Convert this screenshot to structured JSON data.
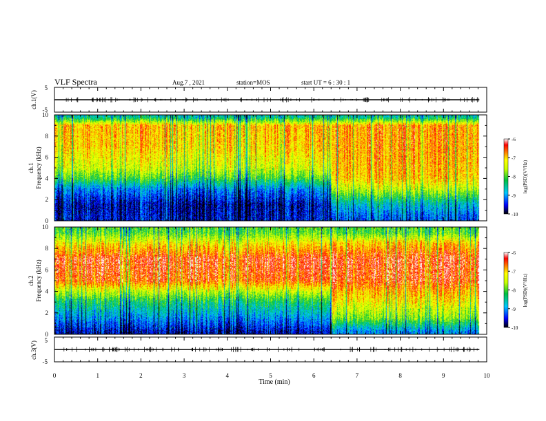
{
  "header": {
    "title": "VLF Spectra",
    "date": "Aug.7 , 2021",
    "station": "station=MOS",
    "start": "start UT = 6 : 30 : 1"
  },
  "x_axis": {
    "label": "Time (min)",
    "ticks": [
      "0",
      "1",
      "2",
      "3",
      "4",
      "5",
      "6",
      "7",
      "8",
      "9",
      "10"
    ]
  },
  "colorbar": {
    "ticks": [
      "-6",
      "-7",
      "-8",
      "-9",
      "-10"
    ],
    "label": "log(PSD)(V²/Hz)"
  },
  "chart_data": [
    {
      "type": "line",
      "title": "",
      "ylabel": "ch.1(V)",
      "ylim": [
        -5,
        5
      ],
      "yticks": [
        "5",
        "-5"
      ],
      "xlim": [
        0,
        10
      ],
      "series": [
        {
          "x": [
            0,
            9.83
          ],
          "y": [
            0,
            0
          ]
        }
      ]
    },
    {
      "type": "heatmap",
      "ylabel": "ch.1\nFrequency (kHz)",
      "ylim": [
        0,
        10
      ],
      "yticks": [
        "10",
        "8",
        "6",
        "4",
        "2",
        "0"
      ],
      "xlim": [
        0,
        10
      ],
      "x": [
        0,
        9.83
      ],
      "color_range_log10_psd": [
        -10,
        -6
      ],
      "profile_before_6_4_min": [
        {
          "f": 0.3,
          "psd": -9.5
        },
        {
          "f": 1.5,
          "psd": -9.6
        },
        {
          "f": 3,
          "psd": -9.0
        },
        {
          "f": 4,
          "psd": -8.0
        },
        {
          "f": 5,
          "psd": -7.4
        },
        {
          "f": 7,
          "psd": -7.0
        },
        {
          "f": 9,
          "psd": -6.9
        },
        {
          "f": 9.8,
          "psd": -8.5
        }
      ],
      "profile_after_6_4_min": [
        {
          "f": 0.3,
          "psd": -9.2
        },
        {
          "f": 1.5,
          "psd": -8.7
        },
        {
          "f": 3,
          "psd": -7.5
        },
        {
          "f": 4,
          "psd": -7.0
        },
        {
          "f": 5,
          "psd": -6.9
        },
        {
          "f": 7,
          "psd": -6.8
        },
        {
          "f": 9,
          "psd": -6.8
        },
        {
          "f": 9.8,
          "psd": -8.5
        }
      ]
    },
    {
      "type": "heatmap",
      "ylabel": "ch.2\nFrequency (kHz)",
      "ylim": [
        0,
        10
      ],
      "yticks": [
        "10",
        "8",
        "6",
        "4",
        "2",
        "0"
      ],
      "xlim": [
        0,
        10
      ],
      "x": [
        0,
        9.83
      ],
      "color_range_log10_psd": [
        -10,
        -6
      ],
      "profile_before_6_4_min": [
        {
          "f": 0.3,
          "psd": -9.6
        },
        {
          "f": 1.5,
          "psd": -9.0
        },
        {
          "f": 3,
          "psd": -8.3
        },
        {
          "f": 4,
          "psd": -7.5
        },
        {
          "f": 5,
          "psd": -6.6
        },
        {
          "f": 7,
          "psd": -6.4
        },
        {
          "f": 8.5,
          "psd": -7.2
        },
        {
          "f": 9.5,
          "psd": -8.0
        }
      ],
      "profile_after_6_4_min": [
        {
          "f": 0.3,
          "psd": -9.0
        },
        {
          "f": 1.5,
          "psd": -7.8
        },
        {
          "f": 3,
          "psd": -7.2
        },
        {
          "f": 4,
          "psd": -6.9
        },
        {
          "f": 5,
          "psd": -6.5
        },
        {
          "f": 7,
          "psd": -6.4
        },
        {
          "f": 8.5,
          "psd": -7.0
        },
        {
          "f": 9.5,
          "psd": -8.0
        }
      ]
    },
    {
      "type": "line",
      "ylabel": "ch.3(V)",
      "ylim": [
        -5,
        5
      ],
      "yticks": [
        "5",
        "-5"
      ],
      "xlim": [
        0,
        10
      ],
      "series": [
        {
          "x": [
            0,
            9.83
          ],
          "y": [
            0,
            0
          ]
        }
      ]
    }
  ]
}
